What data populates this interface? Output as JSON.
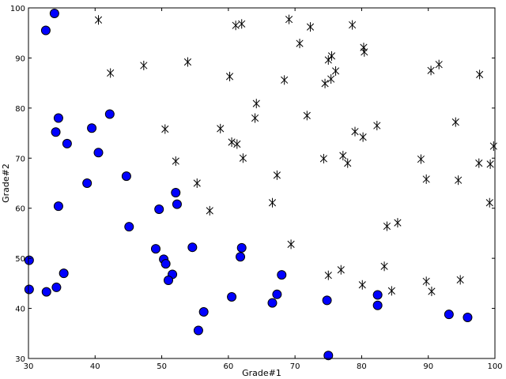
{
  "chart_data": {
    "type": "scatter",
    "xlabel": "Grade#1",
    "ylabel": "Grade#2",
    "xlim": [
      30,
      100
    ],
    "ylim": [
      30,
      100
    ],
    "xticks": [
      30,
      40,
      50,
      60,
      70,
      80,
      90,
      100
    ],
    "yticks": [
      30,
      40,
      50,
      60,
      70,
      80,
      90,
      100
    ],
    "grid": false,
    "series": [
      {
        "marker": "circle",
        "color": "#0000ff",
        "points": [
          [
            33.9,
            98.9
          ],
          [
            32.6,
            95.5
          ],
          [
            34.5,
            78.0
          ],
          [
            42.2,
            78.8
          ],
          [
            34.1,
            75.2
          ],
          [
            39.5,
            76.0
          ],
          [
            35.8,
            72.9
          ],
          [
            40.5,
            71.1
          ],
          [
            44.7,
            66.4
          ],
          [
            38.8,
            65.0
          ],
          [
            52.1,
            63.1
          ],
          [
            34.5,
            60.4
          ],
          [
            52.3,
            60.8
          ],
          [
            49.6,
            59.8
          ],
          [
            45.1,
            56.3
          ],
          [
            54.6,
            52.2
          ],
          [
            62.0,
            52.1
          ],
          [
            49.1,
            51.9
          ],
          [
            61.8,
            50.3
          ],
          [
            50.3,
            49.8
          ],
          [
            30.1,
            49.6
          ],
          [
            50.6,
            48.9
          ],
          [
            35.3,
            47.0
          ],
          [
            51.6,
            46.8
          ],
          [
            68.0,
            46.7
          ],
          [
            51.0,
            45.6
          ],
          [
            34.2,
            44.2
          ],
          [
            30.1,
            43.8
          ],
          [
            32.7,
            43.3
          ],
          [
            67.3,
            42.8
          ],
          [
            60.5,
            42.3
          ],
          [
            82.4,
            42.7
          ],
          [
            74.8,
            41.6
          ],
          [
            66.6,
            41.1
          ],
          [
            82.4,
            40.6
          ],
          [
            56.3,
            39.3
          ],
          [
            93.1,
            38.8
          ],
          [
            95.9,
            38.2
          ],
          [
            55.5,
            35.6
          ],
          [
            75.0,
            30.6
          ]
        ]
      },
      {
        "marker": "asterisk",
        "color": "#000000",
        "points": [
          [
            40.5,
            97.6
          ],
          [
            69.1,
            97.7
          ],
          [
            61.1,
            96.5
          ],
          [
            62.0,
            96.8
          ],
          [
            72.3,
            96.2
          ],
          [
            78.6,
            96.6
          ],
          [
            70.7,
            92.9
          ],
          [
            80.3,
            92.1
          ],
          [
            80.4,
            91.2
          ],
          [
            75.5,
            90.4
          ],
          [
            75.0,
            89.6
          ],
          [
            53.9,
            89.2
          ],
          [
            91.6,
            88.7
          ],
          [
            47.3,
            88.5
          ],
          [
            42.3,
            87.0
          ],
          [
            76.1,
            87.4
          ],
          [
            90.4,
            87.5
          ],
          [
            97.7,
            86.7
          ],
          [
            60.2,
            86.3
          ],
          [
            68.4,
            85.6
          ],
          [
            75.4,
            85.8
          ],
          [
            74.5,
            84.9
          ],
          [
            64.2,
            80.9
          ],
          [
            71.8,
            78.5
          ],
          [
            64.0,
            78.0
          ],
          [
            94.1,
            77.2
          ],
          [
            82.3,
            76.5
          ],
          [
            50.5,
            75.8
          ],
          [
            58.8,
            75.9
          ],
          [
            79.0,
            75.3
          ],
          [
            80.2,
            74.2
          ],
          [
            60.5,
            73.2
          ],
          [
            61.3,
            72.8
          ],
          [
            99.8,
            72.4
          ],
          [
            77.2,
            70.5
          ],
          [
            74.3,
            69.9
          ],
          [
            62.2,
            70.0
          ],
          [
            88.9,
            69.8
          ],
          [
            52.1,
            69.4
          ],
          [
            77.9,
            69.0
          ],
          [
            97.6,
            69.0
          ],
          [
            99.3,
            68.8
          ],
          [
            67.3,
            66.6
          ],
          [
            89.7,
            65.8
          ],
          [
            94.5,
            65.6
          ],
          [
            55.3,
            65.0
          ],
          [
            66.6,
            61.1
          ],
          [
            99.2,
            61.1
          ],
          [
            57.2,
            59.5
          ],
          [
            85.4,
            57.1
          ],
          [
            83.8,
            56.4
          ],
          [
            69.4,
            52.8
          ],
          [
            83.4,
            48.4
          ],
          [
            76.9,
            47.7
          ],
          [
            75.0,
            46.6
          ],
          [
            94.8,
            45.7
          ],
          [
            89.7,
            45.4
          ],
          [
            80.1,
            44.7
          ],
          [
            84.5,
            43.5
          ],
          [
            90.5,
            43.4
          ]
        ]
      }
    ]
  }
}
